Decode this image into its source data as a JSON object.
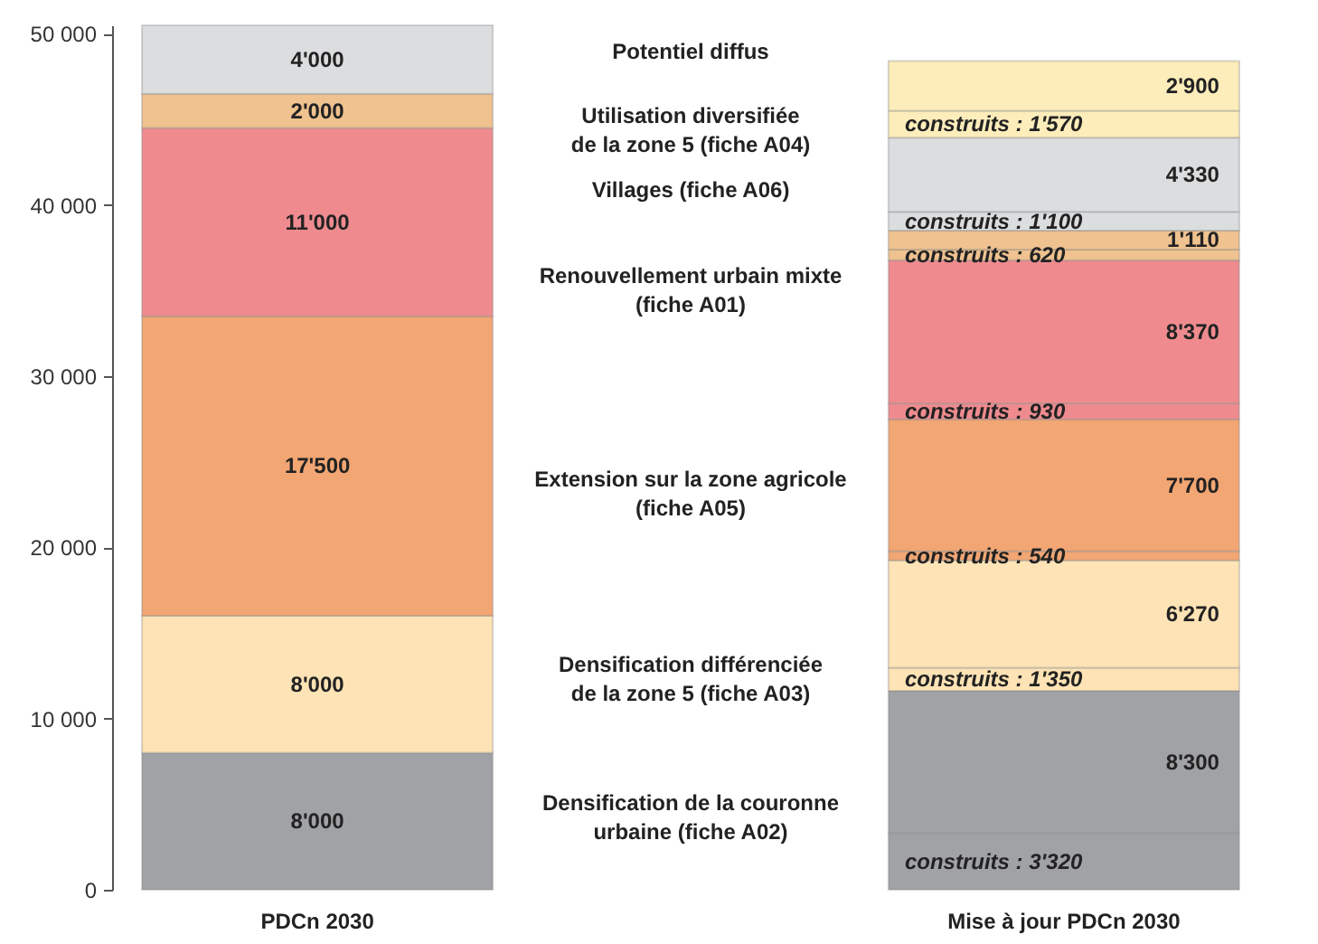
{
  "chart_data": {
    "type": "bar",
    "stacked": true,
    "categories": [
      "PDCn 2030",
      "Mise à jour PDCn 2030"
    ],
    "series": [
      {
        "color": "#a0a2a5",
        "values": [
          null,
          3320
        ],
        "value_labels": [
          null,
          "construits : 3'320"
        ]
      },
      {
        "color": "#a0a2a5",
        "values": [
          8000,
          8300
        ],
        "value_labels": [
          "8'000",
          "8'300"
        ]
      },
      {
        "color": "#fde3b5",
        "values": [
          null,
          1350
        ],
        "value_labels": [
          null,
          "construits : 1'350"
        ]
      },
      {
        "color": "#fde3b5",
        "values": [
          8000,
          6270
        ],
        "value_labels": [
          "8'000",
          "6'270"
        ]
      },
      {
        "color": "#f2a673",
        "values": [
          null,
          540
        ],
        "value_labels": [
          null,
          "construits : 540"
        ]
      },
      {
        "color": "#f2a673",
        "values": [
          17500,
          7700
        ],
        "value_labels": [
          "17'500",
          "7'700"
        ]
      },
      {
        "color": "#ef8b8f",
        "values": [
          null,
          930
        ],
        "value_labels": [
          null,
          "construits : 930"
        ]
      },
      {
        "color": "#ef8b8f",
        "values": [
          11000,
          8370
        ],
        "value_labels": [
          "11'000",
          "8'370"
        ]
      },
      {
        "color": "#efc28f",
        "values": [
          null,
          620
        ],
        "value_labels": [
          null,
          "construits : 620"
        ]
      },
      {
        "color": "#efc28f",
        "values": [
          2000,
          1110
        ],
        "value_labels": [
          "2'000",
          "1'110"
        ]
      },
      {
        "color": "#dcdddf",
        "values": [
          null,
          1100
        ],
        "value_labels": [
          null,
          "construits : 1'100"
        ]
      },
      {
        "color": "#dcdddf",
        "values": [
          4000,
          4330
        ],
        "value_labels": [
          "4'000",
          "4'330"
        ]
      },
      {
        "color": "#fdedbb",
        "values": [
          null,
          1570
        ],
        "value_labels": [
          null,
          "construits : 1'570"
        ]
      },
      {
        "color": "#fdedbb",
        "values": [
          null,
          2900
        ],
        "value_labels": [
          null,
          "2'900"
        ]
      }
    ],
    "ylim": [
      0,
      50500
    ],
    "yticks": [
      {
        "value": 0,
        "label": "0"
      },
      {
        "value": 10000,
        "label": "10 000"
      },
      {
        "value": 20000,
        "label": "20 000"
      },
      {
        "value": 30000,
        "label": "30 000"
      },
      {
        "value": 40000,
        "label": "40 000"
      },
      {
        "value": 50000,
        "label": "50 000"
      }
    ],
    "annotations": [
      "Potentiel diffus",
      "Utilisation diversifiée\nde la zone 5 (fiche A04)",
      "Villages (fiche A06)",
      "Renouvellement urbain mixte\n(fiche A01)",
      "Extension sur la zone agricole\n(fiche A05)",
      "Densification différenciée\nde la zone 5 (fiche A03)",
      "Densification de la couronne\nurbaine (fiche A02)"
    ]
  }
}
